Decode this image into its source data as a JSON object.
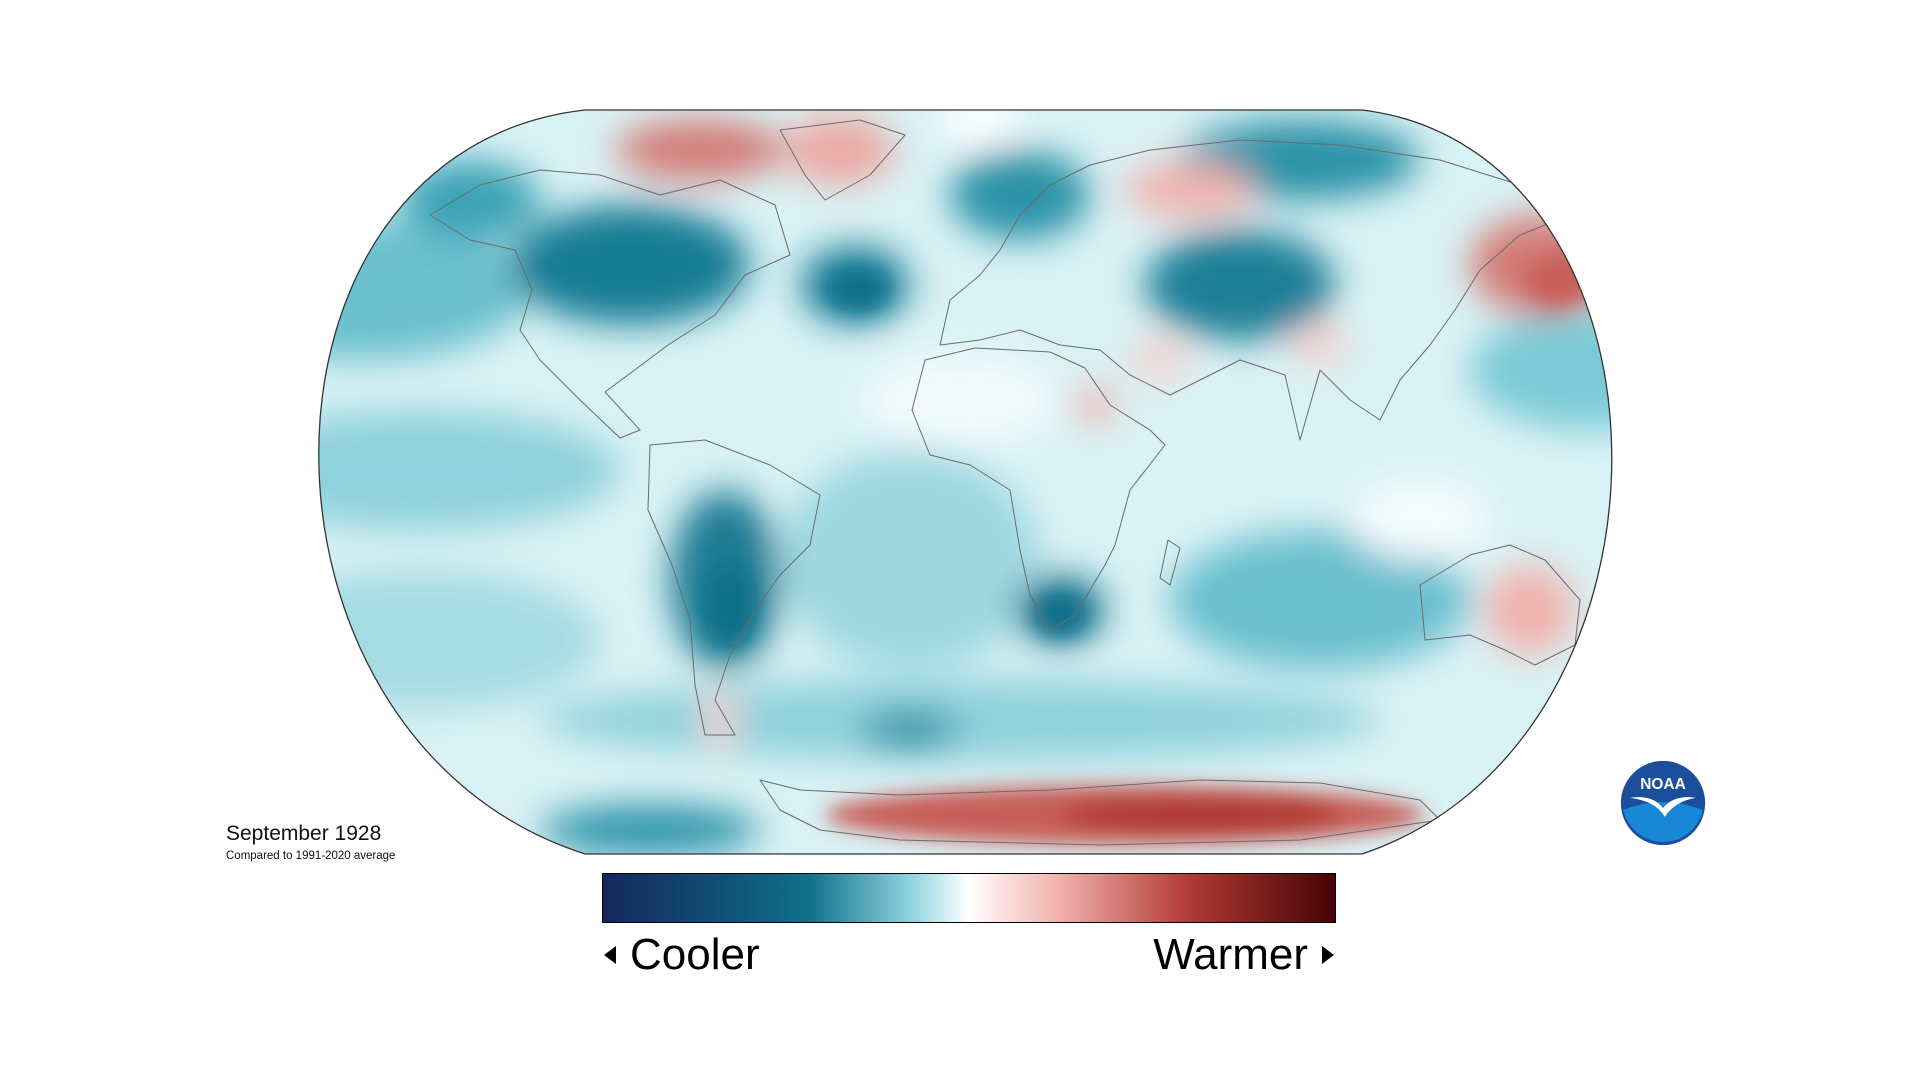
{
  "map": {
    "title": "September 1928",
    "subtitle": "Compared to 1991-2020 average"
  },
  "legend": {
    "cooler_label": "Cooler",
    "warmer_label": "Warmer",
    "colors": [
      "#14275e",
      "#0f6f8a",
      "#8fd3de",
      "#ffffff",
      "#f2b3ae",
      "#b13a36",
      "#450404"
    ]
  },
  "logo": {
    "text": "NOAA",
    "colors": {
      "outer": "#1b4f9c",
      "inner": "#1a86d6",
      "bird": "#ffffff"
    }
  },
  "colors": {
    "ocean_base": "#d9f2f5",
    "cool_light": "#7ccad7",
    "cool_mid": "#3aa3b5",
    "cool_dark": "#0e6f8a",
    "warm_light": "#f1b2ad",
    "warm_mid": "#d37a74",
    "warm_dark": "#b13a36",
    "coastline": "#6b6b6b",
    "outline": "#333333"
  }
}
